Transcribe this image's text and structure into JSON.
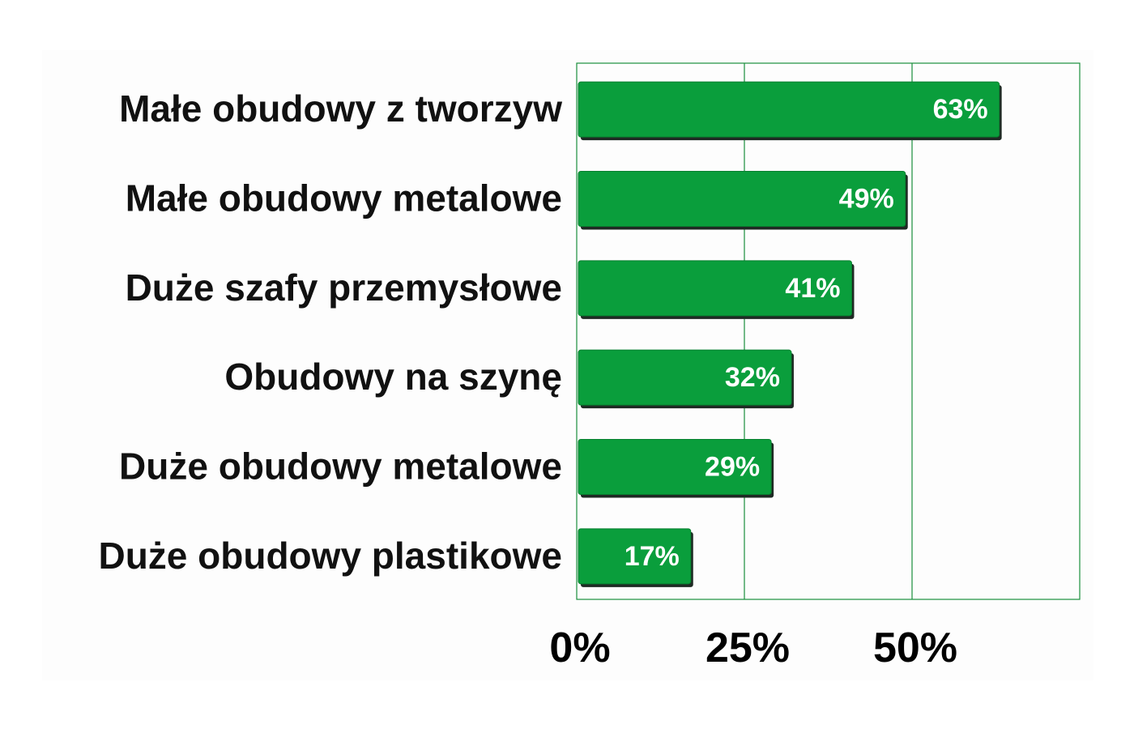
{
  "chart_data": {
    "type": "bar",
    "orientation": "horizontal",
    "categories": [
      "Małe obudowy z tworzyw",
      "Małe obudowy metalowe",
      "Duże szafy przemysłowe",
      "Obudowy na szynę",
      "Duże obudowy metalowe",
      "Duże obudowy plastikowe"
    ],
    "values": [
      63,
      49,
      41,
      32,
      29,
      17
    ],
    "value_labels": [
      "63%",
      "49%",
      "41%",
      "32%",
      "29%",
      "17%"
    ],
    "xlim": [
      0,
      75
    ],
    "xticks": [
      0,
      25,
      50
    ],
    "xtick_labels": [
      "0%",
      "25%",
      "50%"
    ],
    "title": "",
    "xlabel": "",
    "ylabel": "",
    "grid": "vertical",
    "legend": "none",
    "colors": {
      "bar": "#0a9e3c",
      "bar_shadow": "#1f2a24",
      "grid": "#1a8f3c",
      "plot_background": "#fdfdfd",
      "category_text": "#111111",
      "value_text": "#ffffff"
    }
  }
}
